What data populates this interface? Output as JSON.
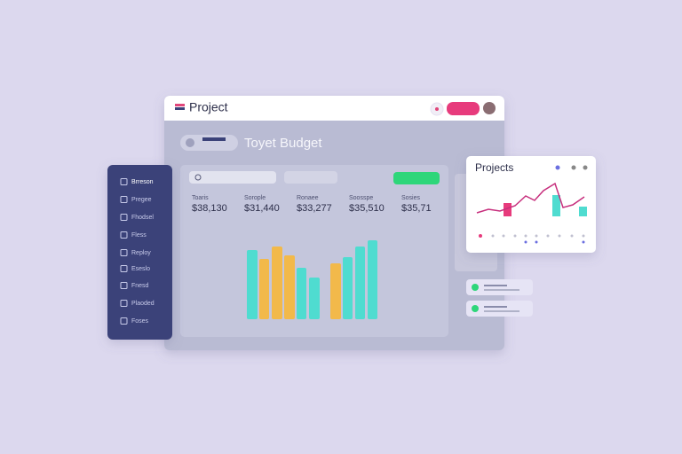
{
  "header": {
    "title": "Project"
  },
  "budget": {
    "title": "Toyet Budget",
    "stats": [
      {
        "label": "Toaris",
        "value": "$38,130"
      },
      {
        "label": "Sorople",
        "value": "$31,440"
      },
      {
        "label": "Ronaee",
        "value": "$33,277"
      },
      {
        "label": "Soosspe",
        "value": "$35,510"
      },
      {
        "label": "Sosies",
        "value": "$35,71"
      }
    ]
  },
  "sidebar": {
    "items": [
      "Brreson",
      "Pregee",
      "Fhodsel",
      "Fless",
      "Reploy",
      "Eseslo",
      "Fnesd",
      "Plaoded",
      "Foses"
    ]
  },
  "projects_card": {
    "title": "Projects"
  }
}
